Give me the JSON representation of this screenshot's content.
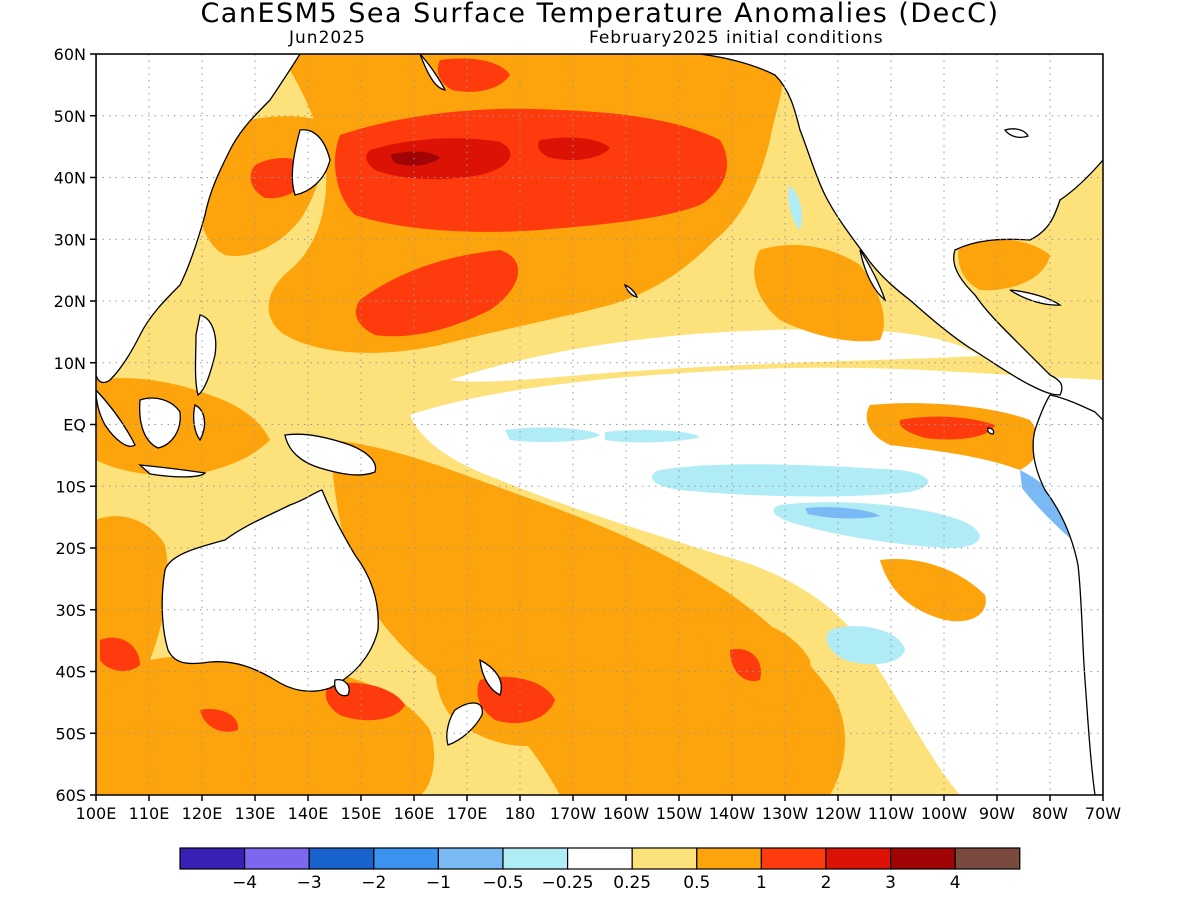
{
  "title": "CanESM5 Sea Surface Temperature Anomalies (DecC)",
  "subtitle_left": "Jun2025",
  "subtitle_right": "February2025 initial conditions",
  "map": {
    "lat_range": [
      -60,
      60
    ],
    "lon_range_deg_east": [
      100,
      290
    ],
    "gridlines": true,
    "lat_labels": [
      "60N",
      "50N",
      "40N",
      "30N",
      "20N",
      "10N",
      "EQ",
      "10S",
      "20S",
      "30S",
      "40S",
      "50S",
      "60S"
    ],
    "lon_labels": [
      "100E",
      "110E",
      "120E",
      "130E",
      "140E",
      "150E",
      "160E",
      "170E",
      "180",
      "170W",
      "160W",
      "150W",
      "140W",
      "130W",
      "120W",
      "110W",
      "100W",
      "90W",
      "80W",
      "70W"
    ]
  },
  "colorbar": {
    "colors": [
      "#3a1fb5",
      "#7b68ee",
      "#1762cc",
      "#3c93ef",
      "#78b9f6",
      "#b0ecf6",
      "#ffffff",
      "#fde27b",
      "#fda30b",
      "#fe3b0c",
      "#dc1205",
      "#a00404",
      "#7a4a3f"
    ],
    "labels": [
      "−4",
      "−3",
      "−2",
      "−1",
      "−0.5",
      "−0.25",
      "0.25",
      "0.5",
      "1",
      "2",
      "3",
      "4"
    ]
  },
  "legend_colors": {
    "yellow_0_25_to_0_5": "#fde27b",
    "orange_0_5_to_1": "#fda30b",
    "red_1_to_2": "#fe3b0c",
    "darkred_2_to_3": "#dc1205",
    "maroon_3_to_4": "#a00404",
    "lightblue_neg_0_25_to_neg_0_5": "#b0ecf6",
    "blue_neg_0_5_to_neg_1": "#78b9f6",
    "blue_neg_1_to_neg_2": "#3c93ef"
  }
}
